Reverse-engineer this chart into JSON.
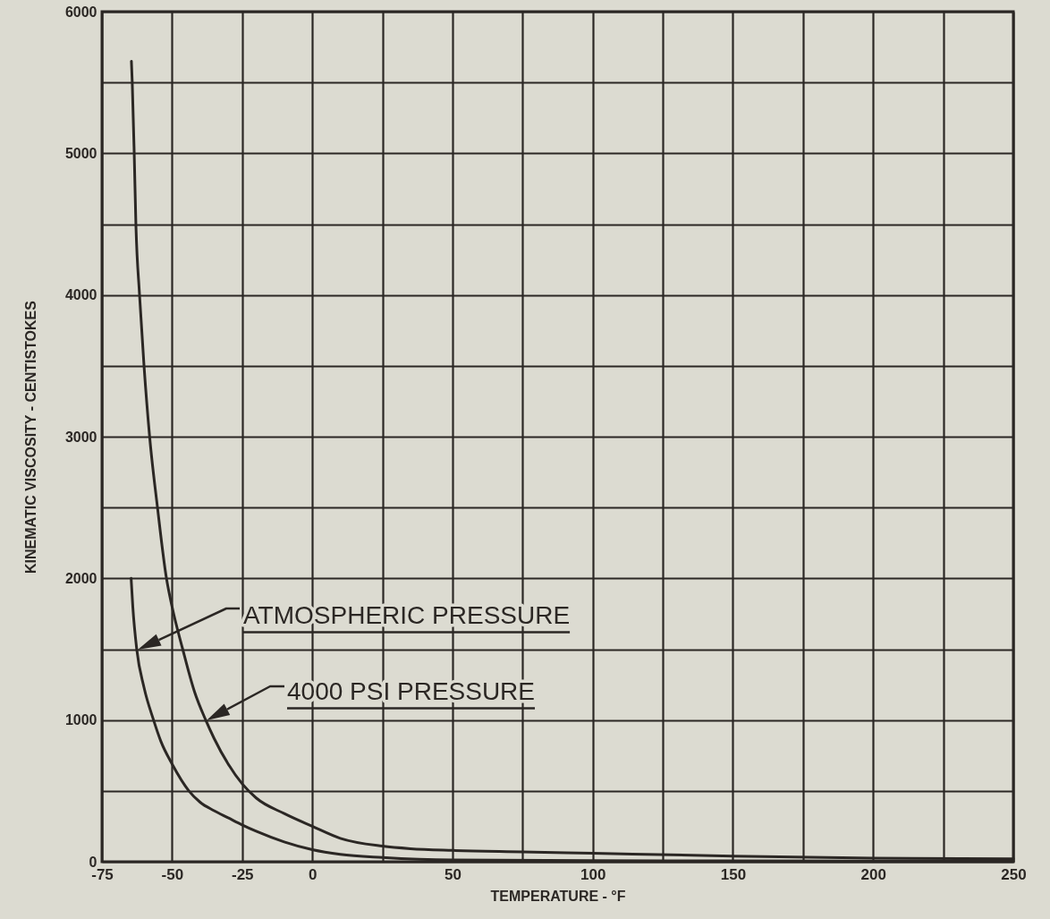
{
  "chart_data": {
    "type": "line",
    "xlabel": "TEMPERATURE  -  °F",
    "ylabel": "KINEMATIC VISCOSITY  -  CENTISTOKES",
    "series": [
      {
        "color": "#2b2724",
        "x": [
          -64.5,
          -64.2,
          -63.5,
          -62.9,
          -61.6,
          -60,
          -58,
          -55.2,
          -52,
          -50,
          -46.2,
          -42,
          -38,
          -35,
          -30,
          -25,
          -20,
          -10,
          0,
          10,
          25,
          35,
          50,
          75,
          100,
          150,
          200,
          250
        ],
        "values": [
          5650,
          5500,
          5000,
          4500,
          4000,
          3500,
          3000,
          2500,
          2000,
          1800,
          1500,
          1200,
          1000,
          870,
          690,
          550,
          450,
          340,
          250,
          165,
          110,
          92,
          80,
          70,
          60,
          40,
          25,
          20
        ]
      },
      {
        "color": "#2b2724",
        "x": [
          -64.6,
          -64,
          -62.6,
          -60,
          -56.6,
          -54,
          -50,
          -44,
          -40,
          -35,
          -30,
          -25,
          -20,
          -10,
          0,
          10,
          25,
          50,
          100,
          150,
          200,
          250
        ],
        "values": [
          2000,
          1800,
          1500,
          1230,
          1000,
          850,
          690,
          500,
          420,
          360,
          310,
          260,
          215,
          140,
          85,
          52,
          30,
          12,
          8,
          6,
          5,
          5
        ]
      }
    ],
    "annotations": [
      "ATMOSPHERIC PRESSURE",
      "4000 PSI PRESSURE"
    ],
    "xlim": [
      -75,
      250
    ],
    "xticks": [
      -75,
      -50,
      -25,
      0,
      {
        "value": 25,
        "label": null
      },
      50,
      {
        "value": 75,
        "label": null
      },
      100,
      {
        "value": 125,
        "label": null
      },
      150,
      {
        "value": 175,
        "label": null
      },
      200,
      {
        "value": 225,
        "label": null
      },
      250
    ],
    "ylim": [
      0,
      6000
    ],
    "yticks": [
      0,
      {
        "value": 500,
        "label": null
      },
      1000,
      {
        "value": 1500,
        "label": null
      },
      2000,
      {
        "value": 2500,
        "label": null
      },
      3000,
      {
        "value": 3500,
        "label": null
      },
      4000,
      {
        "value": 4500,
        "label": null
      },
      5000,
      {
        "value": 5500,
        "label": null
      },
      6000
    ],
    "grid": true,
    "line_style": "solid"
  }
}
